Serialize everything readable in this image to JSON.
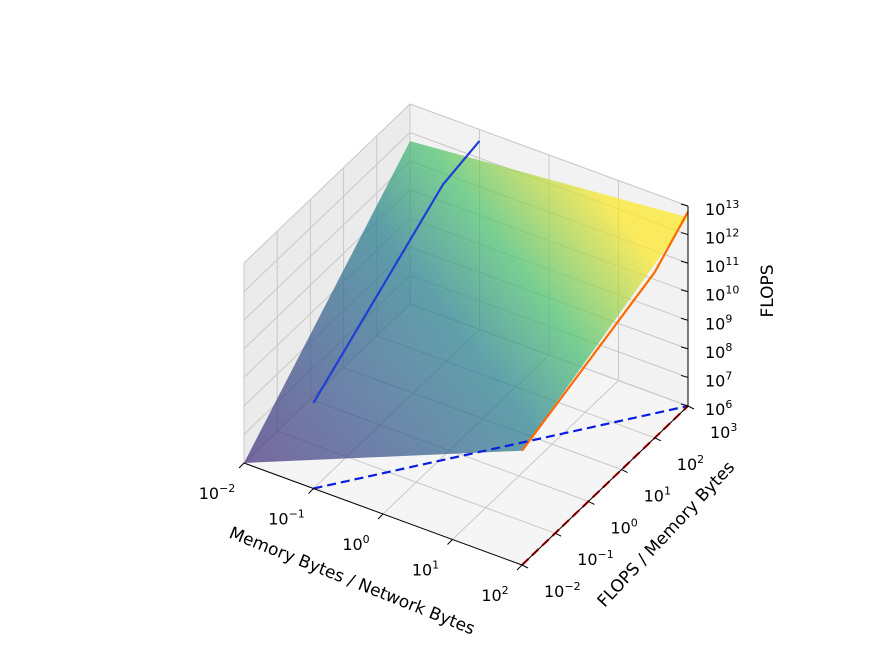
{
  "chart_data": {
    "type": "surface3d",
    "title": "",
    "x_axis": {
      "label": "Memory Bytes / Network Bytes",
      "scale": "log",
      "range": [
        0.01,
        100
      ],
      "ticks": [
        {
          "base": "10",
          "exp": "−2"
        },
        {
          "base": "10",
          "exp": "−1"
        },
        {
          "base": "10",
          "exp": "0"
        },
        {
          "base": "10",
          "exp": "1"
        },
        {
          "base": "10",
          "exp": "2"
        }
      ]
    },
    "y_axis": {
      "label": "FLOPS / Memory Bytes",
      "scale": "log",
      "range": [
        0.01,
        1000
      ],
      "ticks": [
        {
          "base": "10",
          "exp": "−2"
        },
        {
          "base": "10",
          "exp": "−1"
        },
        {
          "base": "10",
          "exp": "0"
        },
        {
          "base": "10",
          "exp": "1"
        },
        {
          "base": "10",
          "exp": "2"
        },
        {
          "base": "10",
          "exp": "3"
        }
      ]
    },
    "z_axis": {
      "label": "FLOPS",
      "scale": "log",
      "range": [
        1000000.0,
        10000000000000.0
      ],
      "ticks": [
        {
          "base": "10",
          "exp": "6"
        },
        {
          "base": "10",
          "exp": "7"
        },
        {
          "base": "10",
          "exp": "8"
        },
        {
          "base": "10",
          "exp": "9"
        },
        {
          "base": "10",
          "exp": "10"
        },
        {
          "base": "10",
          "exp": "11"
        },
        {
          "base": "10",
          "exp": "12"
        },
        {
          "base": "10",
          "exp": "13"
        }
      ]
    },
    "grid": true,
    "colormap": "viridis",
    "surface_corners_log10": [
      {
        "log_x": -2,
        "log_y": -2,
        "log_z": 6
      },
      {
        "log_x": 2,
        "log_y": -2,
        "log_z": 10
      },
      {
        "log_x": 2,
        "log_y": 3,
        "log_z": 12.6
      },
      {
        "log_x": -2,
        "log_y": 3,
        "log_z": 11.7
      }
    ],
    "series": [
      {
        "color": "#1f3fd8",
        "style": "solid",
        "points_log10": [
          [
            -1,
            -2,
            9
          ],
          [
            -1,
            1.9,
            12.3
          ],
          [
            -1,
            3,
            12.6
          ]
        ]
      },
      {
        "color": "#ff6a00",
        "style": "solid",
        "points_log10": [
          [
            2,
            -2,
            10
          ],
          [
            2,
            2,
            11.8
          ],
          [
            2,
            3,
            12.8
          ]
        ]
      },
      {
        "color": "#0a1ee0",
        "style": "dashed",
        "points_log10": [
          [
            -1,
            -2,
            6
          ],
          [
            2,
            3,
            6
          ]
        ]
      },
      {
        "color": "#ff0000",
        "style": "dashed",
        "points_log10": [
          [
            2,
            -2,
            6
          ],
          [
            2,
            3,
            6
          ]
        ]
      }
    ]
  }
}
